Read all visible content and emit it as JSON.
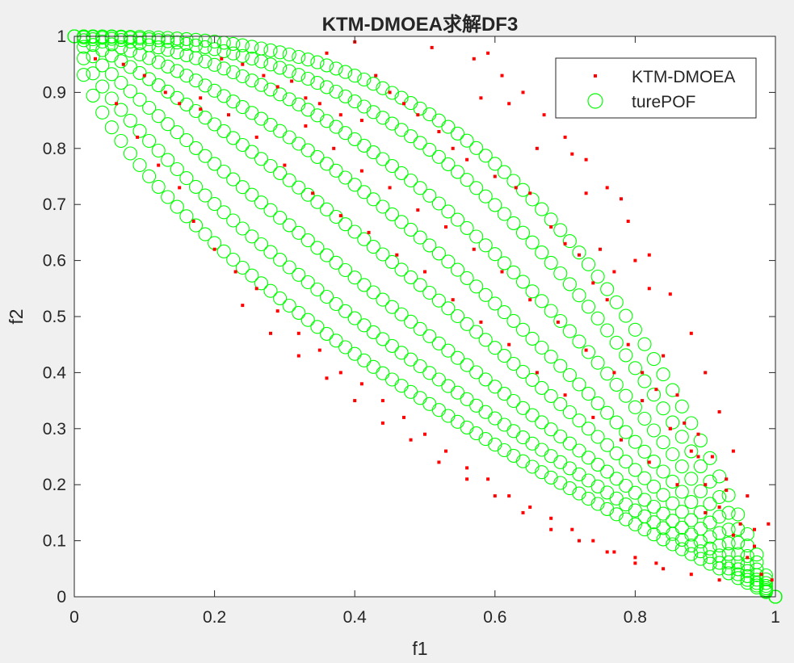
{
  "chart_data": {
    "type": "scatter",
    "title": "KTM-DMOEA求解DF3",
    "xlabel": "f1",
    "ylabel": "f2",
    "xlim": [
      0,
      1
    ],
    "ylim": [
      0,
      1
    ],
    "xticks": [
      "0",
      "0.2",
      "0.4",
      "0.6",
      "0.8",
      "1"
    ],
    "yticks": [
      "0",
      "0.1",
      "0.2",
      "0.3",
      "0.4",
      "0.5",
      "0.6",
      "0.7",
      "0.8",
      "0.9",
      "1"
    ],
    "grid": false,
    "legend_position": "top-right",
    "series": [
      {
        "name": "KTM-DMOEA",
        "marker": "dot",
        "color": "#ff0000",
        "description": "approximated front points scattered near and above the true fronts",
        "points": [
          [
            0.03,
            0.96
          ],
          [
            0.07,
            0.95
          ],
          [
            0.1,
            0.93
          ],
          [
            0.13,
            0.9
          ],
          [
            0.15,
            0.88
          ],
          [
            0.18,
            0.87
          ],
          [
            0.21,
            0.96
          ],
          [
            0.24,
            0.95
          ],
          [
            0.27,
            0.93
          ],
          [
            0.29,
            0.91
          ],
          [
            0.31,
            0.92
          ],
          [
            0.33,
            0.89
          ],
          [
            0.35,
            0.88
          ],
          [
            0.36,
            0.97
          ],
          [
            0.38,
            0.86
          ],
          [
            0.4,
            0.99
          ],
          [
            0.41,
            0.85
          ],
          [
            0.43,
            0.93
          ],
          [
            0.45,
            0.9
          ],
          [
            0.47,
            0.88
          ],
          [
            0.49,
            0.86
          ],
          [
            0.51,
            0.98
          ],
          [
            0.52,
            0.83
          ],
          [
            0.54,
            0.8
          ],
          [
            0.56,
            0.78
          ],
          [
            0.58,
            0.89
          ],
          [
            0.59,
            0.97
          ],
          [
            0.6,
            0.75
          ],
          [
            0.62,
            0.88
          ],
          [
            0.63,
            0.73
          ],
          [
            0.65,
            0.72
          ],
          [
            0.66,
            0.8
          ],
          [
            0.68,
            0.66
          ],
          [
            0.69,
            0.87
          ],
          [
            0.7,
            0.63
          ],
          [
            0.71,
            0.79
          ],
          [
            0.72,
            0.61
          ],
          [
            0.73,
            0.72
          ],
          [
            0.74,
            0.56
          ],
          [
            0.75,
            0.62
          ],
          [
            0.76,
            0.53
          ],
          [
            0.77,
            0.58
          ],
          [
            0.78,
            0.71
          ],
          [
            0.79,
            0.45
          ],
          [
            0.8,
            0.6
          ],
          [
            0.81,
            0.4
          ],
          [
            0.82,
            0.55
          ],
          [
            0.83,
            0.37
          ],
          [
            0.84,
            0.43
          ],
          [
            0.85,
            0.3
          ],
          [
            0.86,
            0.36
          ],
          [
            0.87,
            0.31
          ],
          [
            0.88,
            0.26
          ],
          [
            0.89,
            0.29
          ],
          [
            0.9,
            0.2
          ],
          [
            0.91,
            0.25
          ],
          [
            0.92,
            0.16
          ],
          [
            0.93,
            0.21
          ],
          [
            0.94,
            0.11
          ],
          [
            0.95,
            0.13
          ],
          [
            0.96,
            0.07
          ],
          [
            0.97,
            0.09
          ],
          [
            0.98,
            0.04
          ],
          [
            0.99,
            0.13
          ],
          [
            0.995,
            0.03
          ],
          [
            0.06,
            0.88
          ],
          [
            0.09,
            0.82
          ],
          [
            0.12,
            0.77
          ],
          [
            0.15,
            0.73
          ],
          [
            0.17,
            0.67
          ],
          [
            0.2,
            0.62
          ],
          [
            0.23,
            0.58
          ],
          [
            0.26,
            0.55
          ],
          [
            0.29,
            0.51
          ],
          [
            0.32,
            0.47
          ],
          [
            0.35,
            0.44
          ],
          [
            0.38,
            0.4
          ],
          [
            0.41,
            0.38
          ],
          [
            0.44,
            0.35
          ],
          [
            0.47,
            0.32
          ],
          [
            0.5,
            0.29
          ],
          [
            0.53,
            0.26
          ],
          [
            0.56,
            0.23
          ],
          [
            0.59,
            0.21
          ],
          [
            0.62,
            0.18
          ],
          [
            0.65,
            0.16
          ],
          [
            0.68,
            0.14
          ],
          [
            0.71,
            0.12
          ],
          [
            0.74,
            0.1
          ],
          [
            0.77,
            0.08
          ],
          [
            0.8,
            0.07
          ],
          [
            0.83,
            0.06
          ],
          [
            0.18,
            0.89
          ],
          [
            0.22,
            0.86
          ],
          [
            0.26,
            0.82
          ],
          [
            0.3,
            0.77
          ],
          [
            0.34,
            0.72
          ],
          [
            0.38,
            0.68
          ],
          [
            0.42,
            0.65
          ],
          [
            0.46,
            0.61
          ],
          [
            0.5,
            0.58
          ],
          [
            0.54,
            0.53
          ],
          [
            0.58,
            0.49
          ],
          [
            0.62,
            0.45
          ],
          [
            0.66,
            0.4
          ],
          [
            0.7,
            0.36
          ],
          [
            0.74,
            0.32
          ],
          [
            0.78,
            0.28
          ],
          [
            0.82,
            0.24
          ],
          [
            0.86,
            0.2
          ],
          [
            0.9,
            0.15
          ],
          [
            0.33,
            0.84
          ],
          [
            0.37,
            0.8
          ],
          [
            0.41,
            0.76
          ],
          [
            0.45,
            0.73
          ],
          [
            0.49,
            0.69
          ],
          [
            0.53,
            0.66
          ],
          [
            0.57,
            0.62
          ],
          [
            0.61,
            0.58
          ],
          [
            0.65,
            0.53
          ],
          [
            0.69,
            0.49
          ],
          [
            0.73,
            0.44
          ],
          [
            0.77,
            0.4
          ],
          [
            0.81,
            0.35
          ],
          [
            0.85,
            0.3
          ],
          [
            0.89,
            0.25
          ],
          [
            0.93,
            0.19
          ],
          [
            0.24,
            0.52
          ],
          [
            0.28,
            0.47
          ],
          [
            0.32,
            0.43
          ],
          [
            0.36,
            0.39
          ],
          [
            0.4,
            0.35
          ],
          [
            0.44,
            0.31
          ],
          [
            0.48,
            0.28
          ],
          [
            0.52,
            0.24
          ],
          [
            0.56,
            0.21
          ],
          [
            0.6,
            0.18
          ],
          [
            0.64,
            0.15
          ],
          [
            0.68,
            0.12
          ],
          [
            0.72,
            0.1
          ],
          [
            0.76,
            0.08
          ],
          [
            0.8,
            0.06
          ],
          [
            0.84,
            0.05
          ],
          [
            0.88,
            0.04
          ],
          [
            0.92,
            0.03
          ],
          [
            0.57,
            0.96
          ],
          [
            0.61,
            0.93
          ],
          [
            0.64,
            0.9
          ],
          [
            0.67,
            0.86
          ],
          [
            0.7,
            0.82
          ],
          [
            0.73,
            0.78
          ],
          [
            0.76,
            0.73
          ],
          [
            0.79,
            0.67
          ],
          [
            0.82,
            0.61
          ],
          [
            0.85,
            0.54
          ],
          [
            0.88,
            0.47
          ],
          [
            0.9,
            0.4
          ],
          [
            0.92,
            0.33
          ],
          [
            0.94,
            0.26
          ],
          [
            0.96,
            0.18
          ],
          [
            0.97,
            0.12
          ]
        ]
      },
      {
        "name": "turePOF",
        "marker": "circle",
        "color": "#00ff00",
        "description": "true Pareto fronts of DF3 at several time steps: f2 = 1 - f1^H",
        "exponents": [
          0.62,
          0.75,
          0.92,
          1.15,
          1.45,
          1.85,
          2.35,
          2.9
        ]
      }
    ]
  }
}
